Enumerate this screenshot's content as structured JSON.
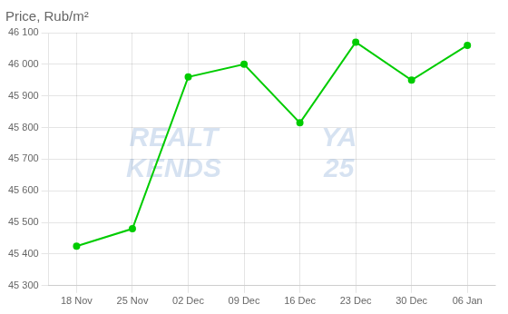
{
  "chart_data": {
    "type": "line",
    "title": "Price, Rub/m²",
    "categories": [
      "18 Nov",
      "25 Nov",
      "02 Dec",
      "09 Dec",
      "16 Dec",
      "23 Dec",
      "30 Dec",
      "06 Jan"
    ],
    "values": [
      45425,
      45480,
      45960,
      46000,
      45815,
      46070,
      45950,
      46060
    ],
    "color": "#00cc00",
    "marker": "circle",
    "ylim": [
      45300,
      46100
    ],
    "yticks": [
      {
        "value": 45300,
        "label": "45 300"
      },
      {
        "value": 45400,
        "label": "45 400"
      },
      {
        "value": 45500,
        "label": "45 500"
      },
      {
        "value": 45600,
        "label": "45 600"
      },
      {
        "value": 45700,
        "label": "45 700"
      },
      {
        "value": 45800,
        "label": "45 800"
      },
      {
        "value": 45900,
        "label": "45 900"
      },
      {
        "value": 46000,
        "label": "46 000"
      },
      {
        "value": 46100,
        "label": "46 100"
      }
    ],
    "grid": true,
    "annotations": [
      "REALT\nKENDS",
      "YA\n25"
    ]
  }
}
